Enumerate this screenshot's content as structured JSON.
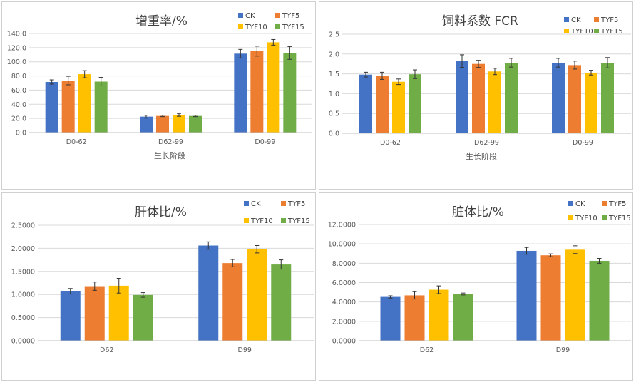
{
  "colors": {
    "CK": "#4472C4",
    "TYF5": "#ED7D31",
    "TYF10": "#FFC000",
    "TYF15": "#70AD47"
  },
  "chart_data": [
    {
      "type": "bar",
      "title": "增重率/%",
      "xlabel": "生长阶段",
      "ylabel": "",
      "categories": [
        "D0-62",
        "D62-99",
        "D0-99"
      ],
      "ylim": [
        0,
        140
      ],
      "ytick_step": 20,
      "ytick_labels": [
        "0.0",
        "20.0",
        "40.0",
        "60.0",
        "80.0",
        "100.0",
        "120.0",
        "140.0"
      ],
      "legend_position": "top-right",
      "series": [
        {
          "name": "CK",
          "values": [
            71.5,
            22.5,
            111.5
          ],
          "errors": [
            3,
            2,
            6
          ]
        },
        {
          "name": "TYF5",
          "values": [
            73.5,
            23.5,
            115.0
          ],
          "errors": [
            6,
            1,
            7
          ]
        },
        {
          "name": "TYF10",
          "values": [
            82.5,
            25.0,
            127.5
          ],
          "errors": [
            5,
            2,
            4
          ]
        },
        {
          "name": "TYF15",
          "values": [
            72.0,
            23.5,
            112.5
          ],
          "errors": [
            6,
            1,
            9
          ]
        }
      ]
    },
    {
      "type": "bar",
      "title": "饲料系数 FCR",
      "xlabel": "生长阶段",
      "ylabel": "",
      "categories": [
        "D0-62",
        "D62-99",
        "D0-99"
      ],
      "ylim": [
        0,
        2.5
      ],
      "ytick_step": 0.5,
      "ytick_labels": [
        "0.0",
        "0.5",
        "1.0",
        "1.5",
        "2.0",
        "2.5"
      ],
      "legend_position": "top-right",
      "series": [
        {
          "name": "CK",
          "values": [
            1.48,
            1.82,
            1.78
          ],
          "errors": [
            0.06,
            0.16,
            0.11
          ]
        },
        {
          "name": "TYF5",
          "values": [
            1.45,
            1.75,
            1.72
          ],
          "errors": [
            0.09,
            0.09,
            0.1
          ]
        },
        {
          "name": "TYF10",
          "values": [
            1.3,
            1.56,
            1.53
          ],
          "errors": [
            0.07,
            0.08,
            0.06
          ]
        },
        {
          "name": "TYF15",
          "values": [
            1.49,
            1.78,
            1.78
          ],
          "errors": [
            0.11,
            0.11,
            0.13
          ]
        }
      ]
    },
    {
      "type": "bar",
      "title": "肝体比/%",
      "xlabel": "",
      "ylabel": "",
      "categories": [
        "D62",
        "D99"
      ],
      "ylim": [
        0,
        2.5
      ],
      "ytick_step": 0.5,
      "ytick_labels": [
        "0.0000",
        "0.5000",
        "1.0000",
        "1.5000",
        "2.0000",
        "2.5000"
      ],
      "legend_position": "top-right",
      "series": [
        {
          "name": "CK",
          "values": [
            1.07,
            2.06
          ],
          "errors": [
            0.06,
            0.08
          ]
        },
        {
          "name": "TYF5",
          "values": [
            1.18,
            1.68
          ],
          "errors": [
            0.09,
            0.08
          ]
        },
        {
          "name": "TYF10",
          "values": [
            1.19,
            1.98
          ],
          "errors": [
            0.16,
            0.08
          ]
        },
        {
          "name": "TYF15",
          "values": [
            0.99,
            1.65
          ],
          "errors": [
            0.05,
            0.1
          ]
        }
      ]
    },
    {
      "type": "bar",
      "title": "脏体比/%",
      "xlabel": "",
      "ylabel": "",
      "categories": [
        "D62",
        "D99"
      ],
      "ylim": [
        0,
        12
      ],
      "ytick_step": 2,
      "ytick_labels": [
        "0.0000",
        "2.0000",
        "4.0000",
        "6.0000",
        "8.0000",
        "10.0000",
        "12.0000"
      ],
      "legend_position": "top-right",
      "series": [
        {
          "name": "CK",
          "values": [
            4.52,
            9.28
          ],
          "errors": [
            0.12,
            0.35
          ]
        },
        {
          "name": "TYF5",
          "values": [
            4.68,
            8.82
          ],
          "errors": [
            0.38,
            0.15
          ]
        },
        {
          "name": "TYF10",
          "values": [
            5.26,
            9.4
          ],
          "errors": [
            0.4,
            0.4
          ]
        },
        {
          "name": "TYF15",
          "values": [
            4.82,
            8.25
          ],
          "errors": [
            0.1,
            0.25
          ]
        }
      ]
    }
  ]
}
